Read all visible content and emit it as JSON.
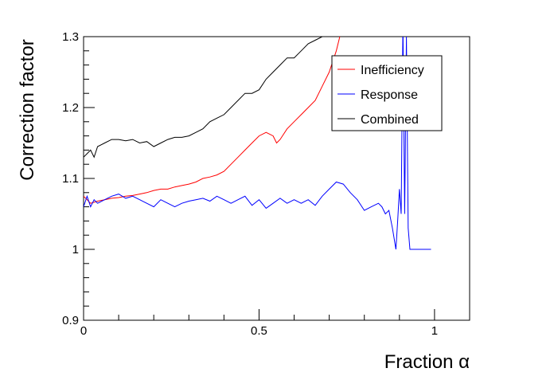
{
  "chart_data": {
    "type": "line",
    "title": "",
    "xlabel": "Fraction α",
    "ylabel": "Correction factor",
    "xlim": [
      0,
      1.1
    ],
    "ylim": [
      0.9,
      1.3
    ],
    "xticks": [
      {
        "value": 0,
        "label": "0"
      },
      {
        "value": 0.5,
        "label": "0.5"
      },
      {
        "value": 1,
        "label": "1"
      }
    ],
    "yticks": [
      {
        "value": 0.9,
        "label": "0.9"
      },
      {
        "value": 1.0,
        "label": "1"
      },
      {
        "value": 1.1,
        "label": "1.1"
      },
      {
        "value": 1.2,
        "label": "1.2"
      },
      {
        "value": 1.3,
        "label": "1.3"
      }
    ],
    "grid": false,
    "legend_position": "top-right",
    "series": [
      {
        "name": "Inefficiency",
        "color": "#ff0000",
        "x": [
          0.0,
          0.01,
          0.02,
          0.04,
          0.06,
          0.08,
          0.1,
          0.12,
          0.14,
          0.16,
          0.18,
          0.2,
          0.22,
          0.24,
          0.26,
          0.28,
          0.3,
          0.32,
          0.34,
          0.36,
          0.38,
          0.4,
          0.42,
          0.44,
          0.46,
          0.48,
          0.5,
          0.52,
          0.54,
          0.55,
          0.56,
          0.58,
          0.6,
          0.62,
          0.64,
          0.66,
          0.68,
          0.7,
          0.72,
          0.74
        ],
        "y": [
          1.075,
          1.07,
          1.065,
          1.068,
          1.07,
          1.072,
          1.073,
          1.075,
          1.076,
          1.078,
          1.08,
          1.083,
          1.085,
          1.085,
          1.088,
          1.09,
          1.092,
          1.095,
          1.1,
          1.102,
          1.105,
          1.11,
          1.12,
          1.13,
          1.14,
          1.15,
          1.16,
          1.165,
          1.16,
          1.15,
          1.155,
          1.17,
          1.18,
          1.19,
          1.2,
          1.21,
          1.23,
          1.25,
          1.28,
          1.32
        ]
      },
      {
        "name": "Response",
        "color": "#0000ff",
        "x": [
          0.0,
          0.01,
          0.02,
          0.03,
          0.04,
          0.06,
          0.08,
          0.1,
          0.12,
          0.14,
          0.16,
          0.18,
          0.2,
          0.22,
          0.24,
          0.26,
          0.28,
          0.3,
          0.32,
          0.34,
          0.36,
          0.38,
          0.4,
          0.42,
          0.44,
          0.46,
          0.48,
          0.5,
          0.52,
          0.54,
          0.56,
          0.58,
          0.6,
          0.62,
          0.64,
          0.66,
          0.68,
          0.7,
          0.72,
          0.74,
          0.76,
          0.78,
          0.8,
          0.82,
          0.84,
          0.85,
          0.86,
          0.87,
          0.88,
          0.89,
          0.895,
          0.9,
          0.905,
          0.91,
          0.915,
          0.92,
          0.925,
          0.93,
          0.93,
          0.99
        ],
        "y": [
          1.06,
          1.075,
          1.06,
          1.07,
          1.065,
          1.07,
          1.075,
          1.078,
          1.072,
          1.075,
          1.07,
          1.065,
          1.06,
          1.07,
          1.065,
          1.06,
          1.065,
          1.068,
          1.07,
          1.072,
          1.068,
          1.075,
          1.07,
          1.065,
          1.07,
          1.075,
          1.062,
          1.07,
          1.058,
          1.065,
          1.072,
          1.065,
          1.07,
          1.065,
          1.07,
          1.062,
          1.075,
          1.085,
          1.095,
          1.092,
          1.08,
          1.07,
          1.055,
          1.06,
          1.065,
          1.06,
          1.05,
          1.055,
          1.03,
          1.0,
          1.04,
          1.085,
          1.05,
          1.32,
          1.05,
          1.3,
          1.03,
          1.0,
          1.0,
          1.0
        ]
      },
      {
        "name": "Combined",
        "color": "#000000",
        "x": [
          0.0,
          0.01,
          0.02,
          0.03,
          0.04,
          0.06,
          0.08,
          0.1,
          0.12,
          0.14,
          0.16,
          0.18,
          0.2,
          0.22,
          0.24,
          0.26,
          0.28,
          0.3,
          0.32,
          0.34,
          0.36,
          0.38,
          0.4,
          0.42,
          0.44,
          0.46,
          0.48,
          0.5,
          0.52,
          0.54,
          0.56,
          0.58,
          0.6,
          0.62,
          0.64,
          0.66,
          0.68
        ],
        "y": [
          1.13,
          1.135,
          1.14,
          1.13,
          1.145,
          1.15,
          1.155,
          1.155,
          1.153,
          1.155,
          1.15,
          1.152,
          1.145,
          1.15,
          1.155,
          1.158,
          1.158,
          1.16,
          1.165,
          1.17,
          1.18,
          1.185,
          1.19,
          1.2,
          1.21,
          1.22,
          1.22,
          1.225,
          1.24,
          1.25,
          1.26,
          1.27,
          1.27,
          1.28,
          1.29,
          1.295,
          1.3
        ]
      }
    ]
  }
}
